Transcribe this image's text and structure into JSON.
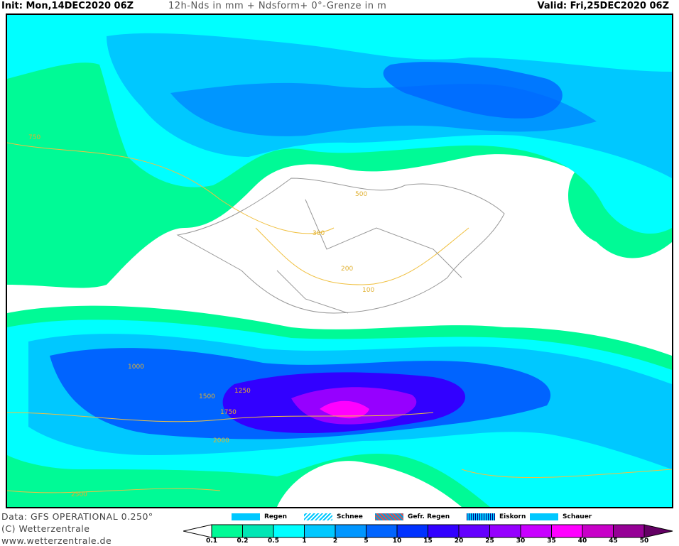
{
  "header": {
    "init": "Init: Mon,14DEC2020 06Z",
    "title": "12h-Nds in mm + Ndsform+ 0°-Grenze in m",
    "valid": "Valid: Fri,25DEC2020 06Z"
  },
  "footer": {
    "data": "Data: GFS OPERATIONAL 0.250°",
    "copyright": "(C) Wetterzentrale",
    "url": "www.wetterzentrale.de"
  },
  "precip_types": [
    {
      "label": "Regen",
      "color": "#00c8ff"
    },
    {
      "label": "Schnee",
      "color": "#00c8ff"
    },
    {
      "label": "Gefr. Regen",
      "color": "#e05050"
    },
    {
      "label": "Eiskorn",
      "color": "#000080"
    },
    {
      "label": "Schauer",
      "color": "#00c8ff"
    }
  ],
  "scale": {
    "ticks": [
      "0.1",
      "0.2",
      "0.5",
      "1",
      "2",
      "5",
      "10",
      "15",
      "20",
      "25",
      "30",
      "35",
      "40",
      "45",
      "50"
    ],
    "colors": [
      "#00fa96",
      "#00e6b4",
      "#00ffff",
      "#00c8ff",
      "#0096ff",
      "#0064ff",
      "#0032ff",
      "#3200ff",
      "#6400ff",
      "#9600ff",
      "#c800ff",
      "#ff00ff",
      "#c800c8",
      "#960096"
    ],
    "over_color": "#640064"
  },
  "map": {
    "contour_labels": [
      "750",
      "500",
      "300",
      "200",
      "100",
      "1000",
      "1250",
      "1500",
      "1750",
      "2000",
      "2500"
    ],
    "contour_color": "#f0c040"
  }
}
